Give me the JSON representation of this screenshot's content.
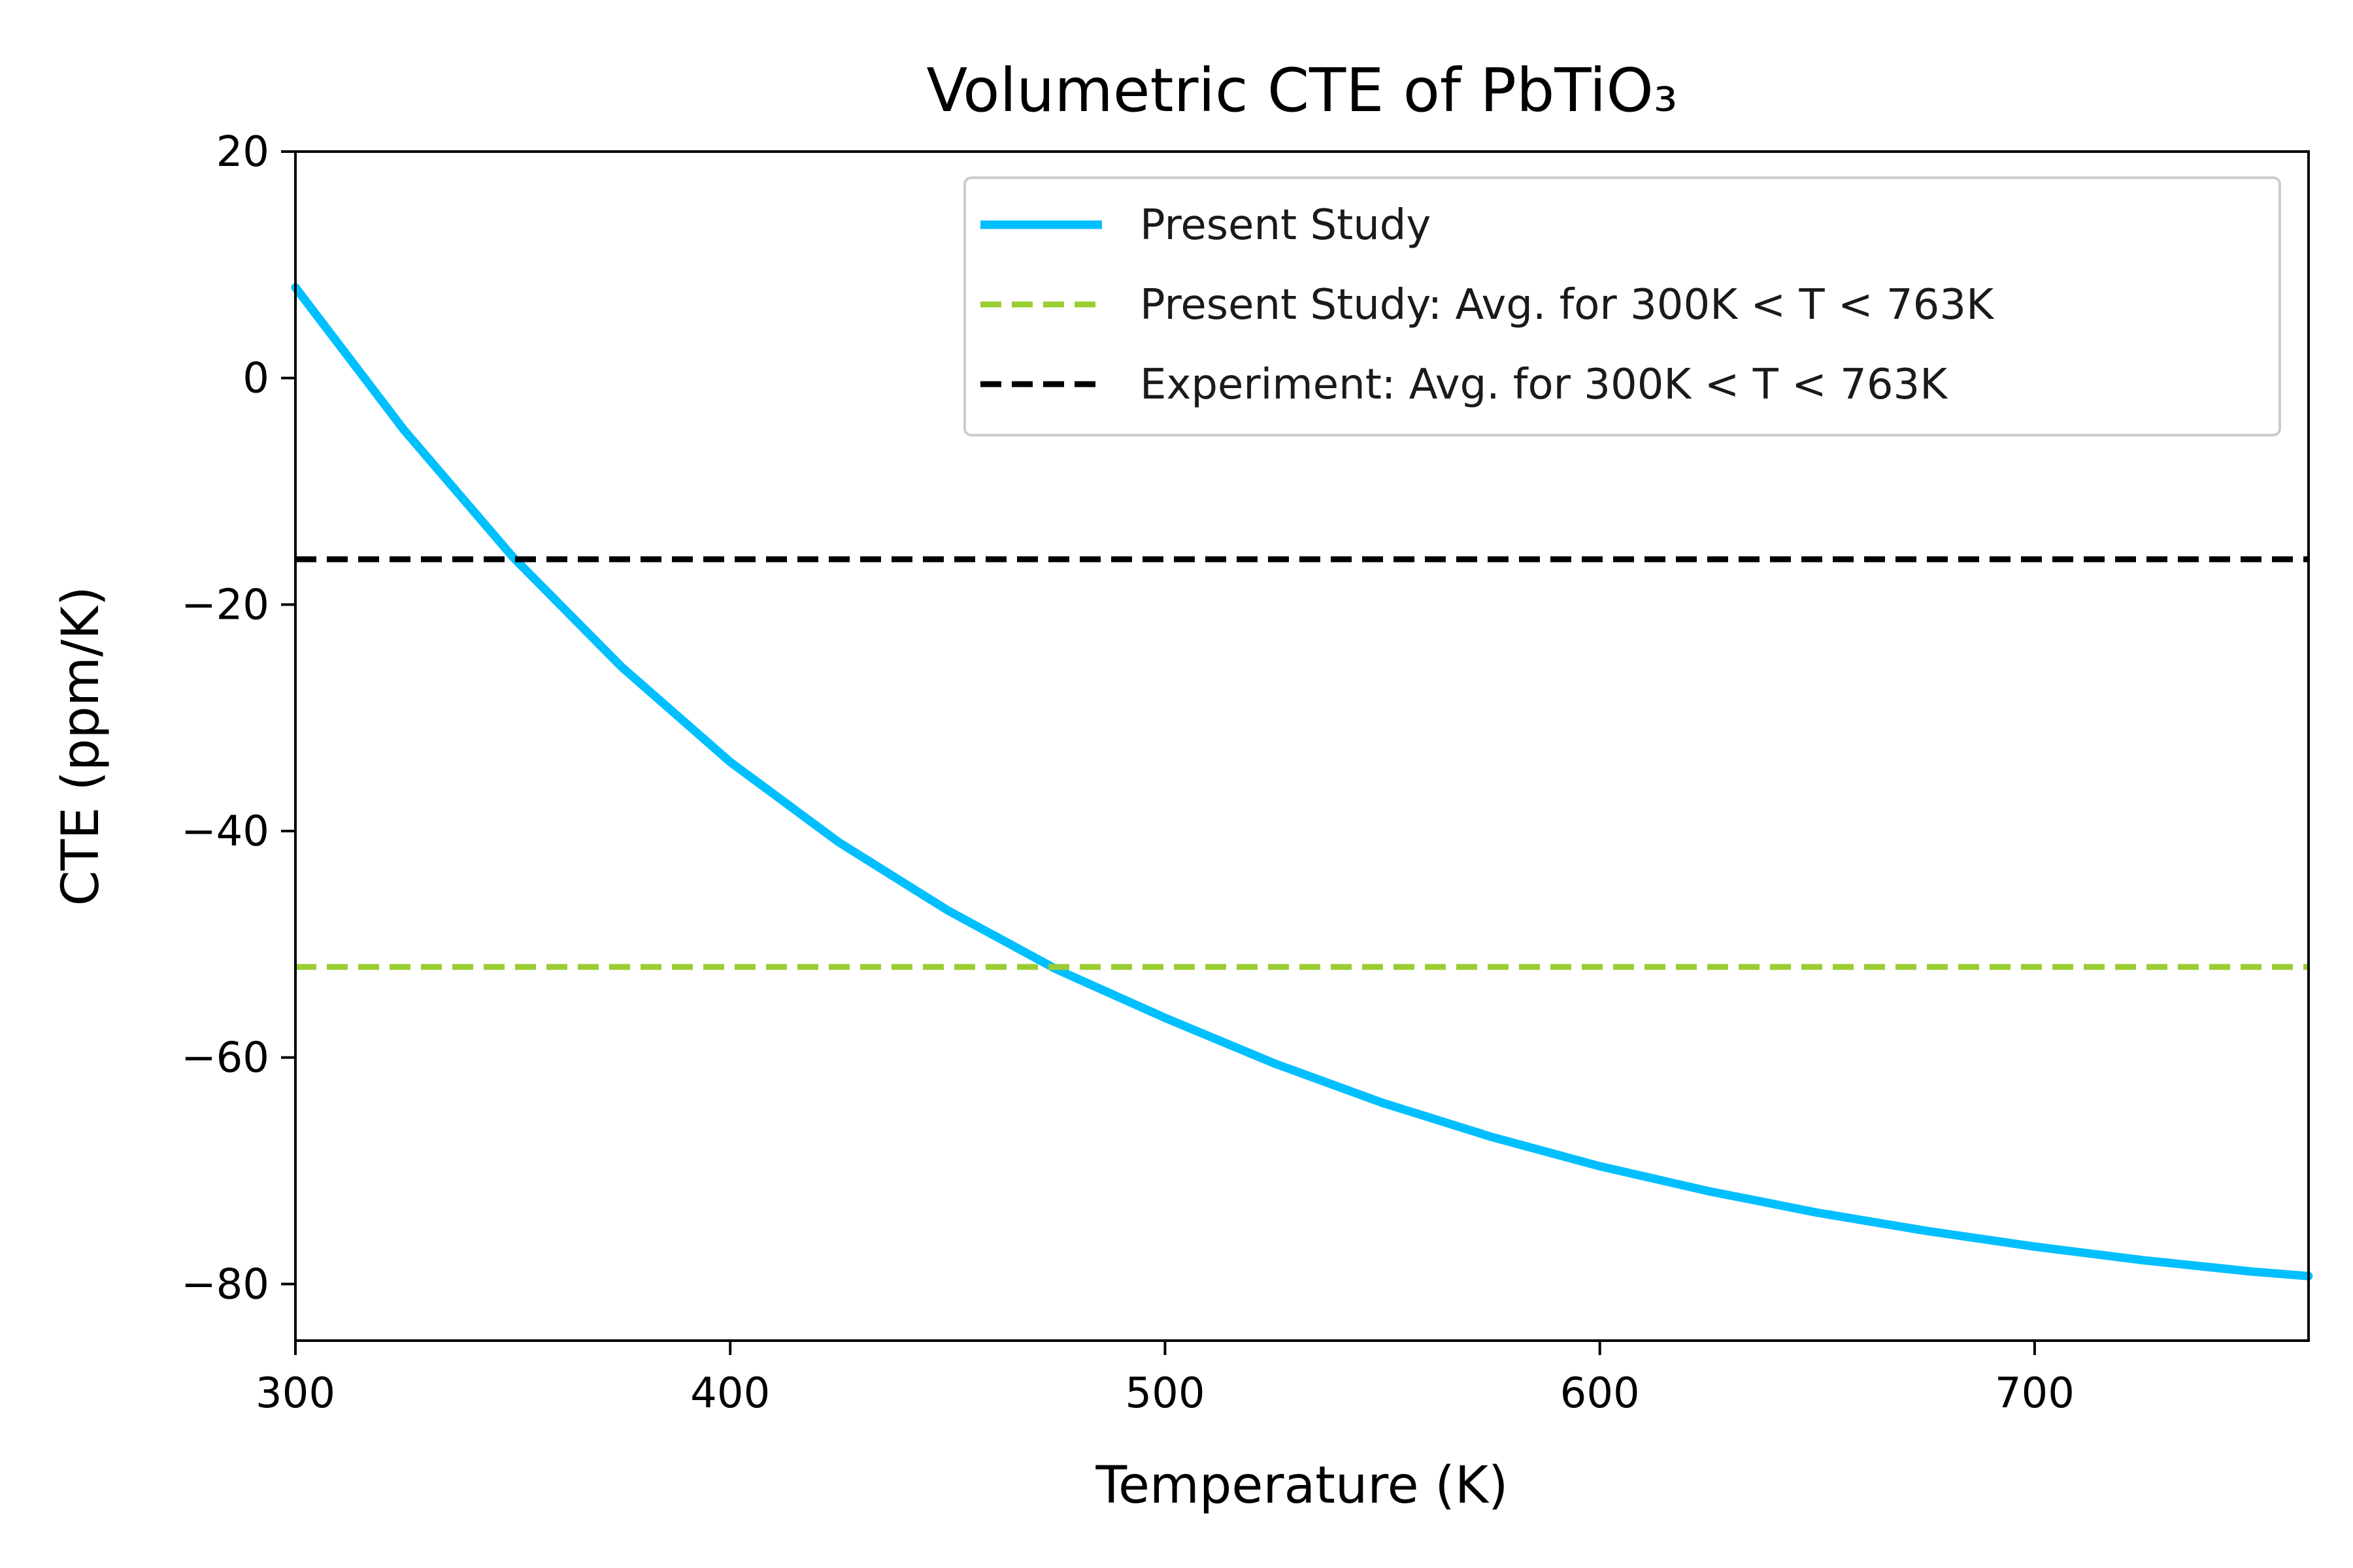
{
  "chart_data": {
    "type": "line",
    "title": "Volumetric CTE of PbTiO₃",
    "xlabel": "Temperature (K)",
    "ylabel": "CTE (ppm/K)",
    "xlim": [
      300,
      763
    ],
    "ylim": [
      -85,
      20
    ],
    "xticks": [
      300,
      400,
      500,
      600,
      700
    ],
    "xtick_labels": [
      "300",
      "400",
      "500",
      "600",
      "700"
    ],
    "yticks": [
      20,
      0,
      -20,
      -40,
      -60,
      -80
    ],
    "ytick_labels": [
      "20",
      "0",
      "−20",
      "−40",
      "−60",
      "−80"
    ],
    "grid": false,
    "legend_position": "top-right",
    "series": [
      {
        "name": "Present Study",
        "style": "solid",
        "color": "#00bfff",
        "x": [
          300,
          325,
          350,
          375,
          400,
          425,
          450,
          475,
          500,
          525,
          550,
          575,
          600,
          625,
          650,
          675,
          700,
          725,
          750,
          763
        ],
        "y": [
          8,
          -4.6,
          -15.8,
          -25.5,
          -33.9,
          -41.0,
          -47.0,
          -52.2,
          -56.5,
          -60.5,
          -64.0,
          -67.0,
          -69.6,
          -71.8,
          -73.7,
          -75.3,
          -76.7,
          -77.9,
          -78.9,
          -79.3
        ]
      },
      {
        "name": "Present Study: Avg. for 300K < T < 763K",
        "style": "dashed",
        "color": "#9acd32",
        "x": [
          300,
          763
        ],
        "y": [
          -52,
          -52
        ]
      },
      {
        "name": "Experiment: Avg. for 300K < T < 763K",
        "style": "dashed",
        "color": "#000000",
        "x": [
          300,
          763
        ],
        "y": [
          -16,
          -16
        ]
      }
    ]
  }
}
